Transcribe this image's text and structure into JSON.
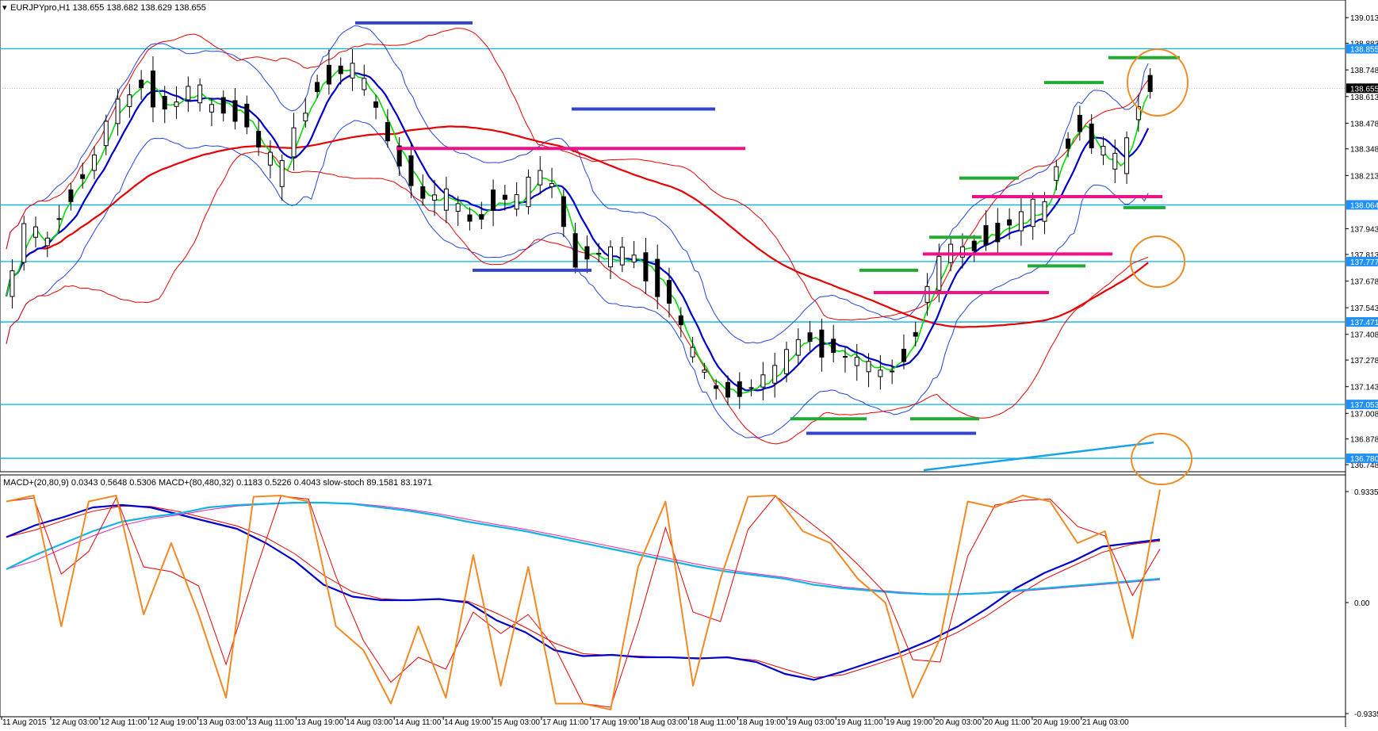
{
  "main_header": "EURJPYpro,H1  138.655 138.682 138.629 138.655",
  "indicator_header": "MACD+(20,80,9) 0.0343 0.5648 0.5306   MACD+(80,480,32) 0.1183 0.5226 0.4043   slow-stoch 89.1581 83.1971",
  "price_axis_ticks": [
    139.013,
    138.883,
    138.748,
    138.613,
    138.478,
    138.348,
    138.213,
    137.943,
    137.813,
    137.678,
    137.543,
    137.408,
    137.278,
    137.143,
    137.008,
    136.878,
    136.748
  ],
  "price_axis_tick_labels": [
    "139.013",
    "138.883",
    "138.748",
    "138.613",
    "138.478",
    "138.348",
    "138.213",
    "137.943",
    "137.813",
    "137.678",
    "137.543",
    "137.408",
    "137.278",
    "137.143",
    "137.008",
    "136.878",
    "136.748"
  ],
  "current_price_label": "138.655",
  "horizontal_levels": [
    {
      "value": 138.855,
      "label": "138.855"
    },
    {
      "value": 138.064,
      "label": "138.064"
    },
    {
      "value": 137.777,
      "label": "137.777"
    },
    {
      "value": 137.471,
      "label": "137.471"
    },
    {
      "value": 137.053,
      "label": "137.053"
    },
    {
      "value": 136.78,
      "label": "136.780"
    }
  ],
  "indicator_axis_labels": [
    "0.9335",
    "0.00",
    "-0.9335"
  ],
  "time_labels": [
    "11 Aug 2015",
    "12 Aug 03:00",
    "12 Aug 11:00",
    "12 Aug 19:00",
    "13 Aug 03:00",
    "13 Aug 11:00",
    "13 Aug 19:00",
    "14 Aug 03:00",
    "14 Aug 11:00",
    "14 Aug 19:00",
    "15 Aug 03:00",
    "17 Aug 11:00",
    "17 Aug 19:00",
    "18 Aug 03:00",
    "18 Aug 11:00",
    "18 Aug 19:00",
    "19 Aug 03:00",
    "19 Aug 11:00",
    "19 Aug 19:00",
    "20 Aug 03:00",
    "20 Aug 11:00",
    "20 Aug 19:00",
    "21 Aug 03:00"
  ],
  "colors": {
    "level_line": "#00b4e6",
    "label_bg": "#1e90ff",
    "sma_fast": "#00dd00",
    "sma_mid": "#0000cc",
    "sma_slow": "#e60000",
    "band_blue": "#2244dd",
    "band_red": "#e60000",
    "trend_cyan": "#1aa3e8",
    "marker_blue": "#3344cc",
    "marker_magenta": "#ee1188",
    "marker_green": "#22aa33",
    "circle": "#f08a24",
    "stoch": "#f08a24",
    "macd_fast": "#0000cc",
    "macd_signal": "#e60000",
    "macd_slow": "#10b4e6",
    "macd_slow_signal": "#ee22aa"
  },
  "chart_data": [
    {
      "type": "candlestick",
      "symbol": "EURJPYpro",
      "timeframe": "H1",
      "title": "EURJPYpro,H1",
      "ohlc": {
        "open": 138.655,
        "high": 138.682,
        "low": 138.629,
        "close": 138.655
      },
      "ylim": [
        136.72,
        139.07
      ],
      "grid": false,
      "x_start": "11 Aug 2015",
      "path": [
        [
          0,
          137.63
        ],
        [
          10,
          137.95
        ],
        [
          20,
          137.85
        ],
        [
          30,
          138.1
        ],
        [
          45,
          138.3
        ],
        [
          55,
          138.55
        ],
        [
          70,
          138.7
        ],
        [
          80,
          138.55
        ],
        [
          90,
          138.62
        ],
        [
          110,
          138.58
        ],
        [
          120,
          138.52
        ],
        [
          130,
          138.35
        ],
        [
          140,
          138.2
        ],
        [
          150,
          138.5
        ],
        [
          160,
          138.7
        ],
        [
          170,
          138.75
        ],
        [
          180,
          138.7
        ],
        [
          190,
          138.55
        ],
        [
          200,
          138.3
        ],
        [
          205,
          138.22
        ],
        [
          215,
          138.1
        ],
        [
          225,
          138.1
        ],
        [
          240,
          138.0
        ],
        [
          250,
          138.1
        ],
        [
          260,
          138.05
        ],
        [
          270,
          138.2
        ],
        [
          280,
          138.15
        ],
        [
          290,
          137.82
        ],
        [
          300,
          137.8
        ],
        [
          310,
          137.78
        ],
        [
          320,
          137.8
        ],
        [
          330,
          137.72
        ],
        [
          340,
          137.55
        ],
        [
          350,
          137.3
        ],
        [
          360,
          137.15
        ],
        [
          370,
          137.1
        ],
        [
          380,
          137.13
        ],
        [
          390,
          137.2
        ],
        [
          400,
          137.3
        ],
        [
          410,
          137.4
        ],
        [
          420,
          137.35
        ],
        [
          430,
          137.3
        ],
        [
          440,
          137.25
        ],
        [
          450,
          137.22
        ],
        [
          460,
          137.3
        ],
        [
          470,
          137.6
        ],
        [
          480,
          137.8
        ],
        [
          490,
          137.85
        ],
        [
          500,
          137.9
        ],
        [
          510,
          137.95
        ],
        [
          520,
          138.0
        ],
        [
          530,
          138.05
        ],
        [
          540,
          138.35
        ],
        [
          550,
          138.5
        ],
        [
          555,
          138.35
        ],
        [
          560,
          138.3
        ],
        [
          570,
          138.25
        ],
        [
          575,
          138.45
        ],
        [
          580,
          138.65
        ],
        [
          585,
          138.66
        ]
      ],
      "horizontal_levels": [
        138.855,
        138.064,
        137.777,
        137.471,
        137.053,
        136.78
      ]
    },
    {
      "type": "line",
      "title": "MACD+(20,80,9) 0.0343 0.5648 0.5306 | MACD+(80,480,32) 0.1183 0.5226 0.4043 | slow-stoch 89.1581 83.1971",
      "ylim": [
        -0.9335,
        0.9335
      ],
      "series": [
        {
          "name": "MACD+(20,80,9)",
          "values": [
            0.55,
            0.65,
            0.72,
            0.8,
            0.82,
            0.8,
            0.74,
            0.68,
            0.62,
            0.5,
            0.35,
            0.15,
            0.05,
            0.02,
            0.02,
            0.03,
            0.0,
            -0.15,
            -0.25,
            -0.4,
            -0.45,
            -0.44,
            -0.46,
            -0.46,
            -0.47,
            -0.46,
            -0.5,
            -0.6,
            -0.65,
            -0.58,
            -0.5,
            -0.42,
            -0.32,
            -0.2,
            -0.05,
            0.12,
            0.25,
            0.35,
            0.47,
            0.5,
            0.53
          ]
        },
        {
          "name": "MACD+(80,480,32)",
          "values": [
            0.28,
            0.4,
            0.5,
            0.6,
            0.68,
            0.72,
            0.75,
            0.8,
            0.82,
            0.83,
            0.84,
            0.84,
            0.83,
            0.8,
            0.77,
            0.73,
            0.68,
            0.64,
            0.6,
            0.55,
            0.5,
            0.45,
            0.4,
            0.35,
            0.3,
            0.26,
            0.23,
            0.2,
            0.15,
            0.12,
            0.1,
            0.08,
            0.07,
            0.07,
            0.08,
            0.1,
            0.12,
            0.14,
            0.16,
            0.18,
            0.2
          ]
        },
        {
          "name": "slow-stoch",
          "values": [
            0.85,
            0.9,
            -0.2,
            0.85,
            0.9,
            -0.1,
            0.5,
            -0.1,
            -0.8,
            0.89,
            0.9,
            0.85,
            -0.2,
            -0.4,
            -0.85,
            -0.2,
            -0.8,
            0.4,
            -0.7,
            0.3,
            -0.85,
            -0.85,
            -0.9,
            0.3,
            0.85,
            -0.7,
            0.2,
            0.89,
            0.9,
            0.6,
            0.5,
            0.2,
            0.0,
            -0.8,
            -0.3,
            0.85,
            0.8,
            0.9,
            0.85,
            0.5,
            0.6,
            -0.3,
            0.95
          ]
        }
      ]
    }
  ]
}
